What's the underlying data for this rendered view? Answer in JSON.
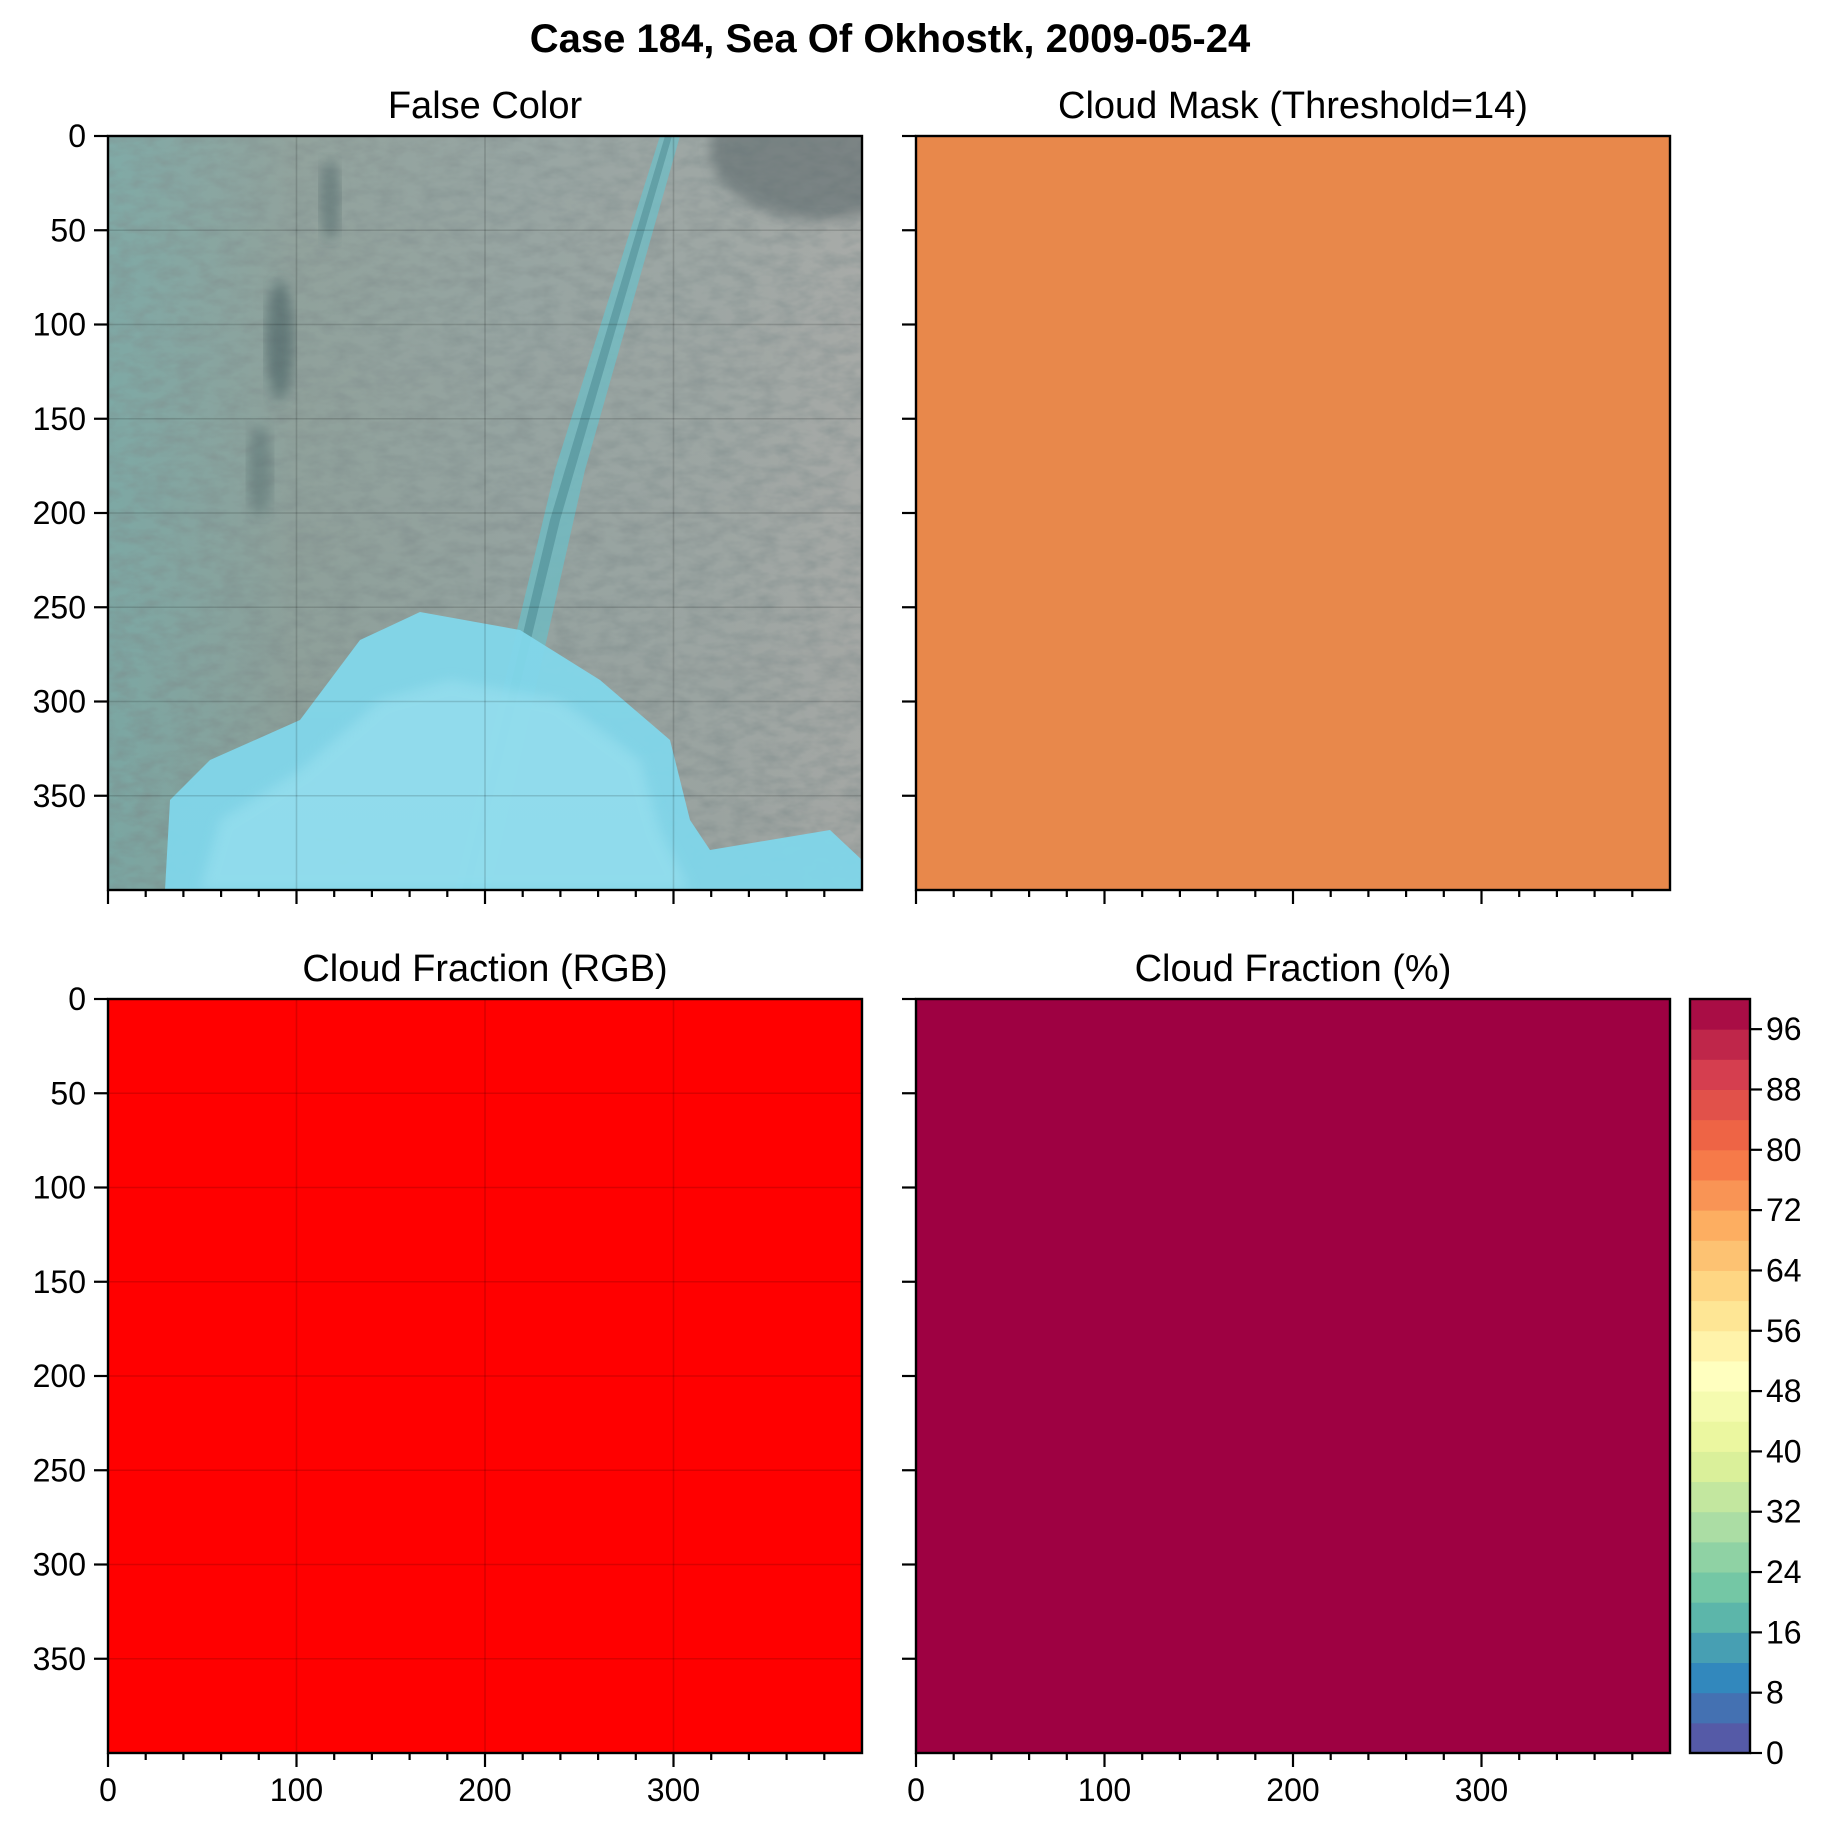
{
  "chart_data": [
    {
      "type": "image",
      "panel": "false-color",
      "title": "False Color",
      "xlim": [
        0,
        400
      ],
      "ylim": [
        400,
        0
      ],
      "xticks": [
        0,
        100,
        200,
        300
      ],
      "yticks": [
        0,
        50,
        100,
        150,
        200,
        250,
        300,
        350
      ],
      "show_x_tick_labels": false,
      "show_y_tick_labels": true,
      "grid": true
    },
    {
      "type": "heatmap",
      "panel": "cloud-mask",
      "title": "Cloud Mask (Threshold=14)",
      "xlim": [
        0,
        400
      ],
      "ylim": [
        400,
        0
      ],
      "xticks": [
        0,
        100,
        200,
        300
      ],
      "yticks": [
        0,
        50,
        100,
        150,
        200,
        250,
        300,
        350
      ],
      "show_x_tick_labels": false,
      "show_y_tick_labels": false,
      "grid": false,
      "fill_color": "#e8884b"
    },
    {
      "type": "heatmap",
      "panel": "cloud-fraction-rgb",
      "title": "Cloud Fraction (RGB)",
      "xlim": [
        0,
        400
      ],
      "ylim": [
        400,
        0
      ],
      "xticks": [
        0,
        100,
        200,
        300
      ],
      "yticks": [
        0,
        50,
        100,
        150,
        200,
        250,
        300,
        350
      ],
      "show_x_tick_labels": true,
      "show_y_tick_labels": true,
      "grid": true,
      "fill_color": "#ff0000"
    },
    {
      "type": "heatmap",
      "panel": "cloud-fraction-pct",
      "title": "Cloud Fraction (%)",
      "xlim": [
        0,
        400
      ],
      "ylim": [
        400,
        0
      ],
      "xticks": [
        0,
        100,
        200,
        300
      ],
      "yticks": [
        0,
        50,
        100,
        150,
        200,
        250,
        300,
        350
      ],
      "show_x_tick_labels": true,
      "show_y_tick_labels": false,
      "grid": false,
      "fill_color": "#9e0142",
      "colorbar": {
        "min": 0,
        "max": 100,
        "step": 4,
        "ticks": [
          0,
          8,
          16,
          24,
          32,
          40,
          48,
          56,
          64,
          72,
          80,
          88,
          96
        ],
        "colormap": "Spectral_r"
      }
    }
  ],
  "figure": {
    "title": "Case 184, Sea Of Okhostk, 2009-05-24"
  },
  "colors": {
    "colormap_stops": [
      "#5e4fa2",
      "#3288bd",
      "#66c2a5",
      "#abdda4",
      "#e6f598",
      "#ffffbf",
      "#fee08b",
      "#fdae61",
      "#f46d43",
      "#d53e4f",
      "#9e0142"
    ]
  }
}
